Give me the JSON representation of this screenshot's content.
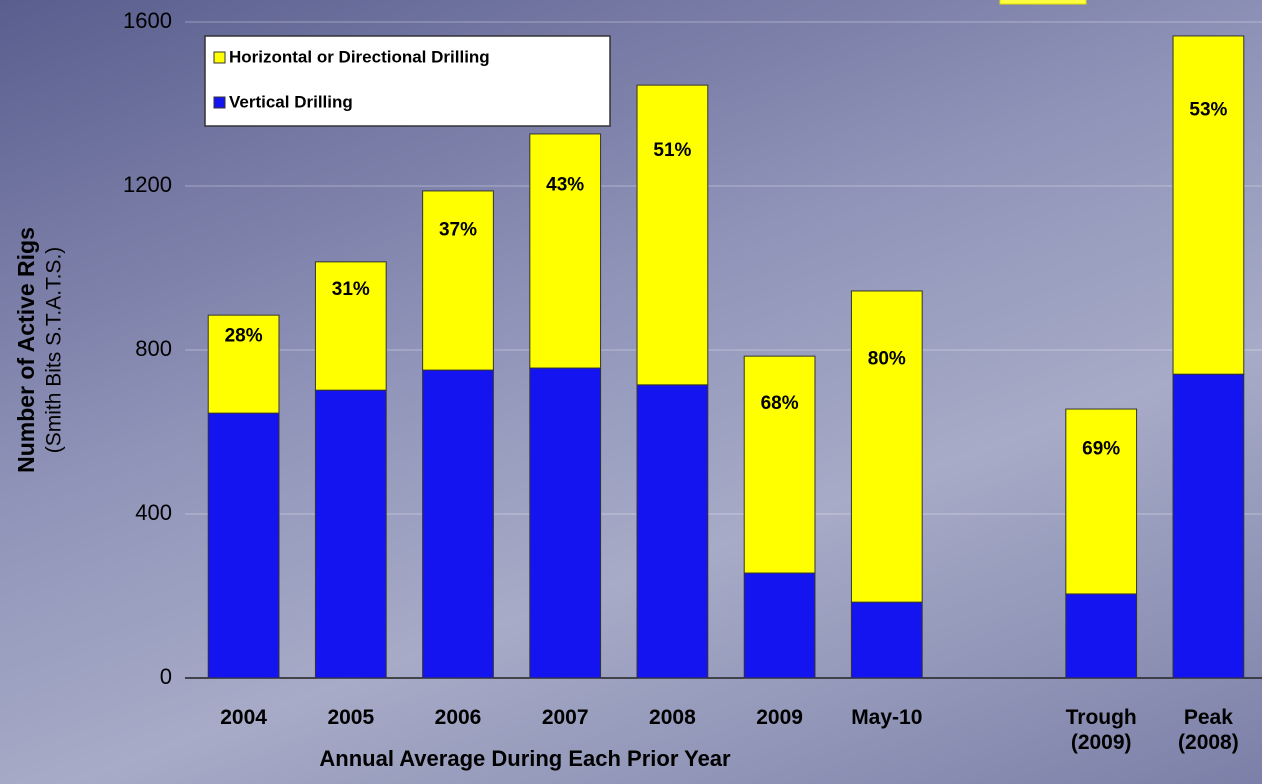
{
  "chart_data": {
    "type": "stacked-bar",
    "y_axis_label": "Number of Active Rigs",
    "y_axis_sublabel": "(Smith Bits S.T.A.T.S.)",
    "x_axis_label": "Annual Average During Each Prior Year",
    "categories": [
      "2004",
      "2005",
      "2006",
      "2007",
      "2008",
      "2009",
      "May-10",
      null,
      "Trough (2009)",
      "Peak (2008)"
    ],
    "series": [
      {
        "name": "Vertical Drilling",
        "color": "#1414f0",
        "values": [
          646,
          702,
          751,
          756,
          715,
          256,
          185,
          null,
          205,
          741
        ]
      },
      {
        "name": "Horizontal or Directional Drilling",
        "color": "#ffff00",
        "values": [
          239,
          313,
          437,
          571,
          731,
          529,
          759,
          null,
          451,
          825
        ]
      }
    ],
    "annotations": [
      "28%",
      "31%",
      "37%",
      "43%",
      "51%",
      "68%",
      "80%",
      null,
      "69%",
      "53%"
    ],
    "ylim": [
      0,
      1600
    ],
    "yticks": [
      0,
      400,
      800,
      1200,
      1600
    ],
    "grid": true,
    "legend": "top-left"
  }
}
